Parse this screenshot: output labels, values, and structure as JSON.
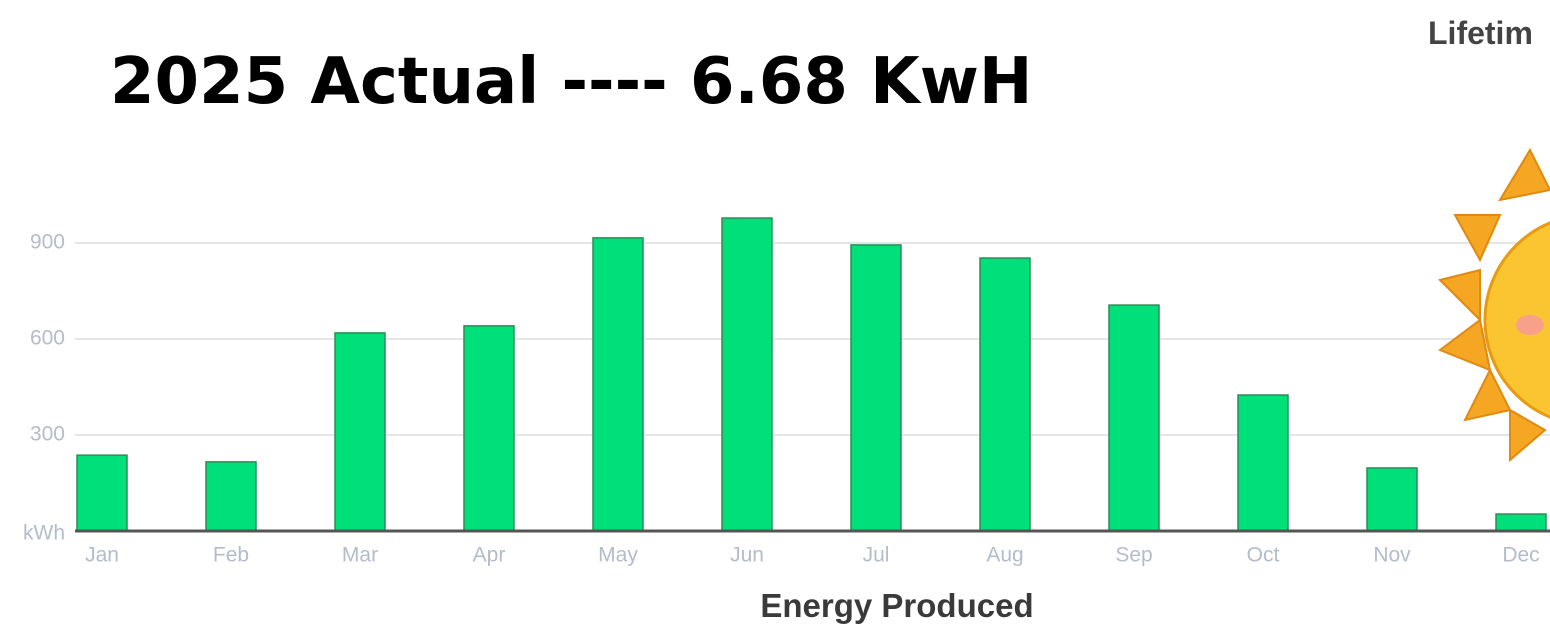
{
  "chart_data": {
    "type": "bar",
    "title": "2025 Actual ---- 6.68 KwH",
    "subtitle": "Lifetim",
    "x_label": "Energy Produced",
    "categories": [
      "Jan",
      "Feb",
      "Mar",
      "Apr",
      "May",
      "Jun",
      "Jul",
      "Aug",
      "Sep",
      "Oct",
      "Nov",
      "Dec"
    ],
    "values": [
      237,
      216,
      619,
      641,
      916,
      978,
      894,
      853,
      706,
      425,
      197,
      53
    ],
    "color": "#00e07a",
    "ylim": [
      0,
      1000
    ],
    "yticks": [
      {
        "value": 0,
        "label": "kWh"
      },
      300,
      600,
      900
    ],
    "grid": true
  }
}
